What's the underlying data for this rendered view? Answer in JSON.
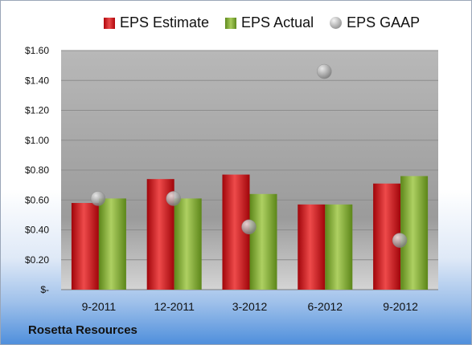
{
  "legend": {
    "estimate": "EPS Estimate",
    "actual": "EPS Actual",
    "gaap": "EPS GAAP"
  },
  "company": "Rosetta Resources",
  "colors": {
    "estimate": "#d0161d",
    "actual": "#8ab544",
    "gaap": "#a8a8a8"
  },
  "chart_data": {
    "type": "bar",
    "categories": [
      "9-2011",
      "12-2011",
      "3-2012",
      "6-2012",
      "9-2012"
    ],
    "series": [
      {
        "name": "EPS Estimate",
        "values": [
          0.58,
          0.74,
          0.77,
          0.57,
          0.71
        ]
      },
      {
        "name": "EPS Actual",
        "values": [
          0.61,
          0.61,
          0.64,
          0.57,
          0.76
        ]
      },
      {
        "name": "EPS GAAP",
        "values": [
          0.61,
          0.61,
          0.42,
          1.46,
          0.33
        ],
        "marker": "circle"
      }
    ],
    "ylim": [
      0,
      1.6
    ],
    "yticks": [
      "$-",
      "$0.20",
      "$0.40",
      "$0.60",
      "$0.80",
      "$1.00",
      "$1.20",
      "$1.40",
      "$1.60"
    ],
    "grid": true,
    "legend_position": "top"
  }
}
